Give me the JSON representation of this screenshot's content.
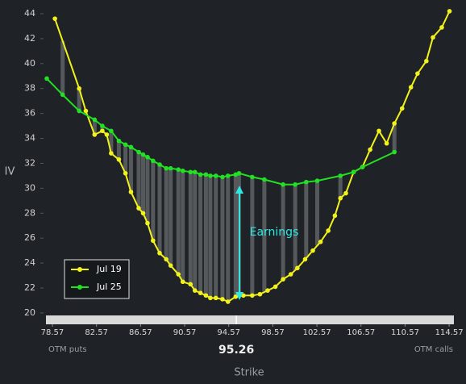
{
  "chart_data": {
    "type": "line",
    "x_label": "Strike",
    "y_label": "IV",
    "left_note": "OTM puts",
    "right_note": "OTM calls",
    "current_price": 95.26,
    "annotation": "Earnings",
    "xlim": [
      78.0,
      115.0
    ],
    "ylim": [
      19.8,
      44.4
    ],
    "xticks": [
      78.57,
      82.57,
      86.57,
      90.57,
      94.57,
      98.57,
      102.57,
      106.57,
      110.57,
      114.57
    ],
    "yticks": [
      20,
      22,
      24,
      26,
      28,
      30,
      32,
      34,
      36,
      38,
      40,
      42,
      44
    ],
    "legend": "lower left",
    "series": [
      {
        "name": "Jul 19",
        "color": "#f2f21a",
        "x": [
          78.8,
          81.0,
          81.6,
          82.4,
          83.1,
          83.5,
          83.9,
          84.6,
          85.2,
          85.7,
          86.4,
          86.8,
          87.2,
          87.7,
          88.3,
          88.9,
          89.3,
          90.0,
          90.4,
          91.1,
          91.5,
          92.0,
          92.5,
          92.9,
          93.4,
          94.0,
          94.5,
          95.2,
          95.9,
          96.7,
          97.4,
          98.1,
          98.8,
          99.5,
          100.2,
          100.8,
          101.5,
          102.2,
          102.9,
          103.6,
          104.2,
          104.7,
          105.2,
          105.9,
          106.7,
          107.4,
          108.2,
          108.9,
          109.6,
          110.3,
          111.1,
          111.7,
          112.5,
          113.1,
          113.9,
          114.6
        ],
        "values": [
          43.6,
          38.0,
          36.2,
          34.3,
          34.6,
          34.3,
          32.8,
          32.3,
          31.2,
          29.7,
          28.4,
          28.0,
          27.2,
          25.8,
          24.8,
          24.3,
          23.8,
          23.1,
          22.5,
          22.3,
          21.8,
          21.6,
          21.4,
          21.2,
          21.2,
          21.1,
          20.9,
          21.3,
          21.4,
          21.4,
          21.5,
          21.8,
          22.1,
          22.7,
          23.1,
          23.6,
          24.3,
          25.0,
          25.7,
          26.6,
          27.8,
          29.2,
          29.6,
          31.3,
          31.7,
          33.1,
          34.6,
          33.6,
          35.2,
          36.4,
          38.1,
          39.2,
          40.2,
          42.1,
          42.9,
          44.2
        ]
      },
      {
        "name": "Jul 25",
        "color": "#22e022",
        "x": [
          78.06,
          79.5,
          81.0,
          82.4,
          83.1,
          83.9,
          84.6,
          85.2,
          85.7,
          86.4,
          86.8,
          87.2,
          87.7,
          88.3,
          88.9,
          89.3,
          90.0,
          90.4,
          91.1,
          91.5,
          92.0,
          92.5,
          92.9,
          93.4,
          94.0,
          94.5,
          95.2,
          95.5,
          96.7,
          97.8,
          99.5,
          100.6,
          101.6,
          102.6,
          104.7,
          105.9,
          106.7,
          109.6
        ],
        "values": [
          38.8,
          37.5,
          36.2,
          35.5,
          35.0,
          34.6,
          33.8,
          33.5,
          33.3,
          32.9,
          32.7,
          32.5,
          32.2,
          31.9,
          31.6,
          31.6,
          31.5,
          31.4,
          31.3,
          31.3,
          31.1,
          31.1,
          31.0,
          31.0,
          30.9,
          31.0,
          31.1,
          31.2,
          30.9,
          30.7,
          30.3,
          30.3,
          30.5,
          30.6,
          31.0,
          31.3,
          31.7,
          32.9
        ]
      }
    ]
  }
}
